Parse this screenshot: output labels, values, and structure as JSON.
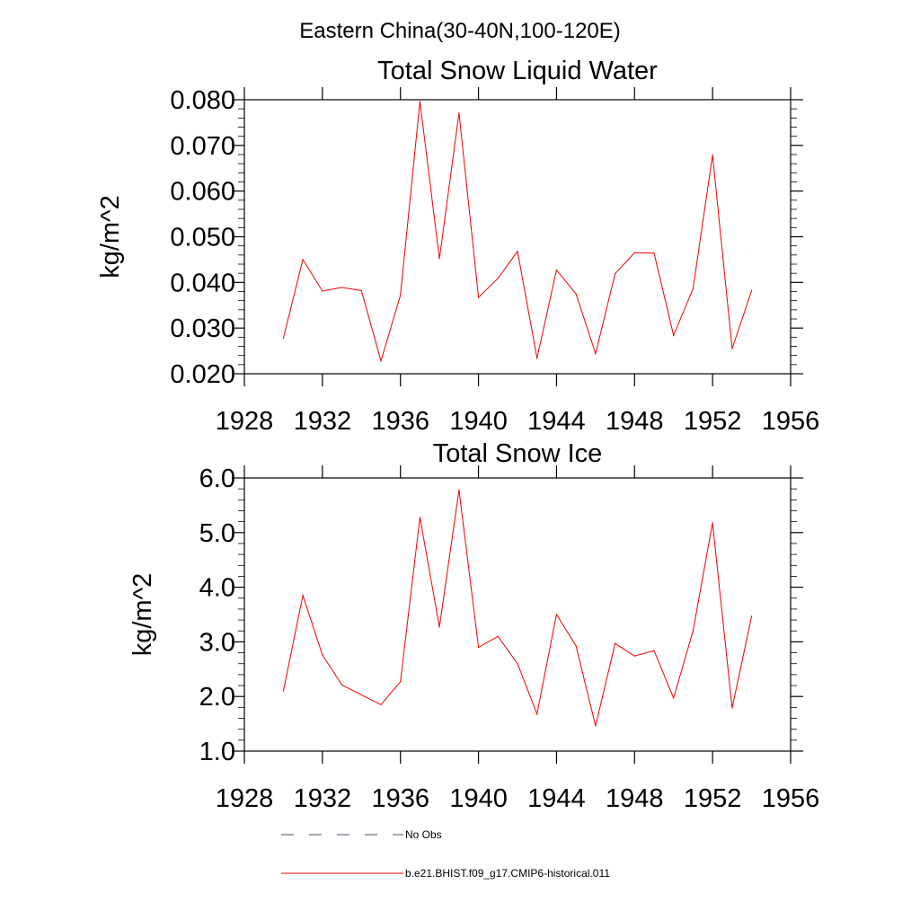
{
  "suptitle": "Eastern China(30-40N,100-120E)",
  "legend": {
    "placement": "bottom-left",
    "entries": [
      {
        "label": "No Obs",
        "color": "#4a4a6a",
        "style": "dashed"
      },
      {
        "label": "b.e21.BHIST.f09_g17.CMIP6-historical.011",
        "color": "#ee0000",
        "style": "solid"
      }
    ]
  },
  "chart_data": [
    {
      "type": "line",
      "title": "Total Snow Liquid Water",
      "ylabel": "kg/m^2",
      "xlabel": "",
      "xlim": [
        1928,
        1956
      ],
      "ylim": [
        0.02,
        0.08
      ],
      "xticks": [
        1928,
        1932,
        1936,
        1940,
        1944,
        1948,
        1952,
        1956
      ],
      "xtick_labels": [
        "1928",
        "1932",
        "1936",
        "1940",
        "1944",
        "1948",
        "1952",
        "1956"
      ],
      "yticks": [
        0.02,
        0.03,
        0.04,
        0.05,
        0.06,
        0.07,
        0.08
      ],
      "ytick_labels": [
        "0.020",
        "0.030",
        "0.040",
        "0.050",
        "0.060",
        "0.070",
        "0.080"
      ],
      "grid": false,
      "x": [
        1930,
        1931,
        1932,
        1933,
        1934,
        1935,
        1936,
        1937,
        1938,
        1939,
        1940,
        1941,
        1942,
        1943,
        1944,
        1945,
        1946,
        1947,
        1948,
        1949,
        1950,
        1951,
        1952,
        1953,
        1954
      ],
      "series": [
        {
          "color": "#ee0000",
          "values": [
            0.0278,
            0.045,
            0.0381,
            0.0389,
            0.0382,
            0.0228,
            0.0372,
            0.0796,
            0.0452,
            0.0771,
            0.0367,
            0.0409,
            0.0468,
            0.0234,
            0.0427,
            0.0375,
            0.0244,
            0.0419,
            0.0465,
            0.0464,
            0.0284,
            0.0386,
            0.0679,
            0.0255,
            0.0382
          ]
        }
      ]
    },
    {
      "type": "line",
      "title": "Total Snow Ice",
      "ylabel": "kg/m^2",
      "xlabel": "",
      "xlim": [
        1928,
        1956
      ],
      "ylim": [
        1.0,
        6.0
      ],
      "xticks": [
        1928,
        1932,
        1936,
        1940,
        1944,
        1948,
        1952,
        1956
      ],
      "xtick_labels": [
        "1928",
        "1932",
        "1936",
        "1940",
        "1944",
        "1948",
        "1952",
        "1956"
      ],
      "yticks": [
        1,
        2,
        3,
        4,
        5,
        6
      ],
      "ytick_labels": [
        "1.0",
        "2.0",
        "3.0",
        "4.0",
        "5.0",
        "6.0"
      ],
      "grid": false,
      "x": [
        1930,
        1931,
        1932,
        1933,
        1934,
        1935,
        1936,
        1937,
        1938,
        1939,
        1940,
        1941,
        1942,
        1943,
        1944,
        1945,
        1946,
        1947,
        1948,
        1949,
        1950,
        1951,
        1952,
        1953,
        1954
      ],
      "series": [
        {
          "color": "#ee0000",
          "values": [
            2.1,
            3.85,
            2.76,
            2.21,
            2.03,
            1.85,
            2.27,
            5.28,
            3.27,
            5.78,
            2.9,
            3.1,
            2.6,
            1.68,
            3.5,
            2.93,
            1.46,
            2.97,
            2.74,
            2.84,
            1.97,
            3.2,
            5.18,
            1.79,
            3.47
          ]
        }
      ]
    }
  ]
}
